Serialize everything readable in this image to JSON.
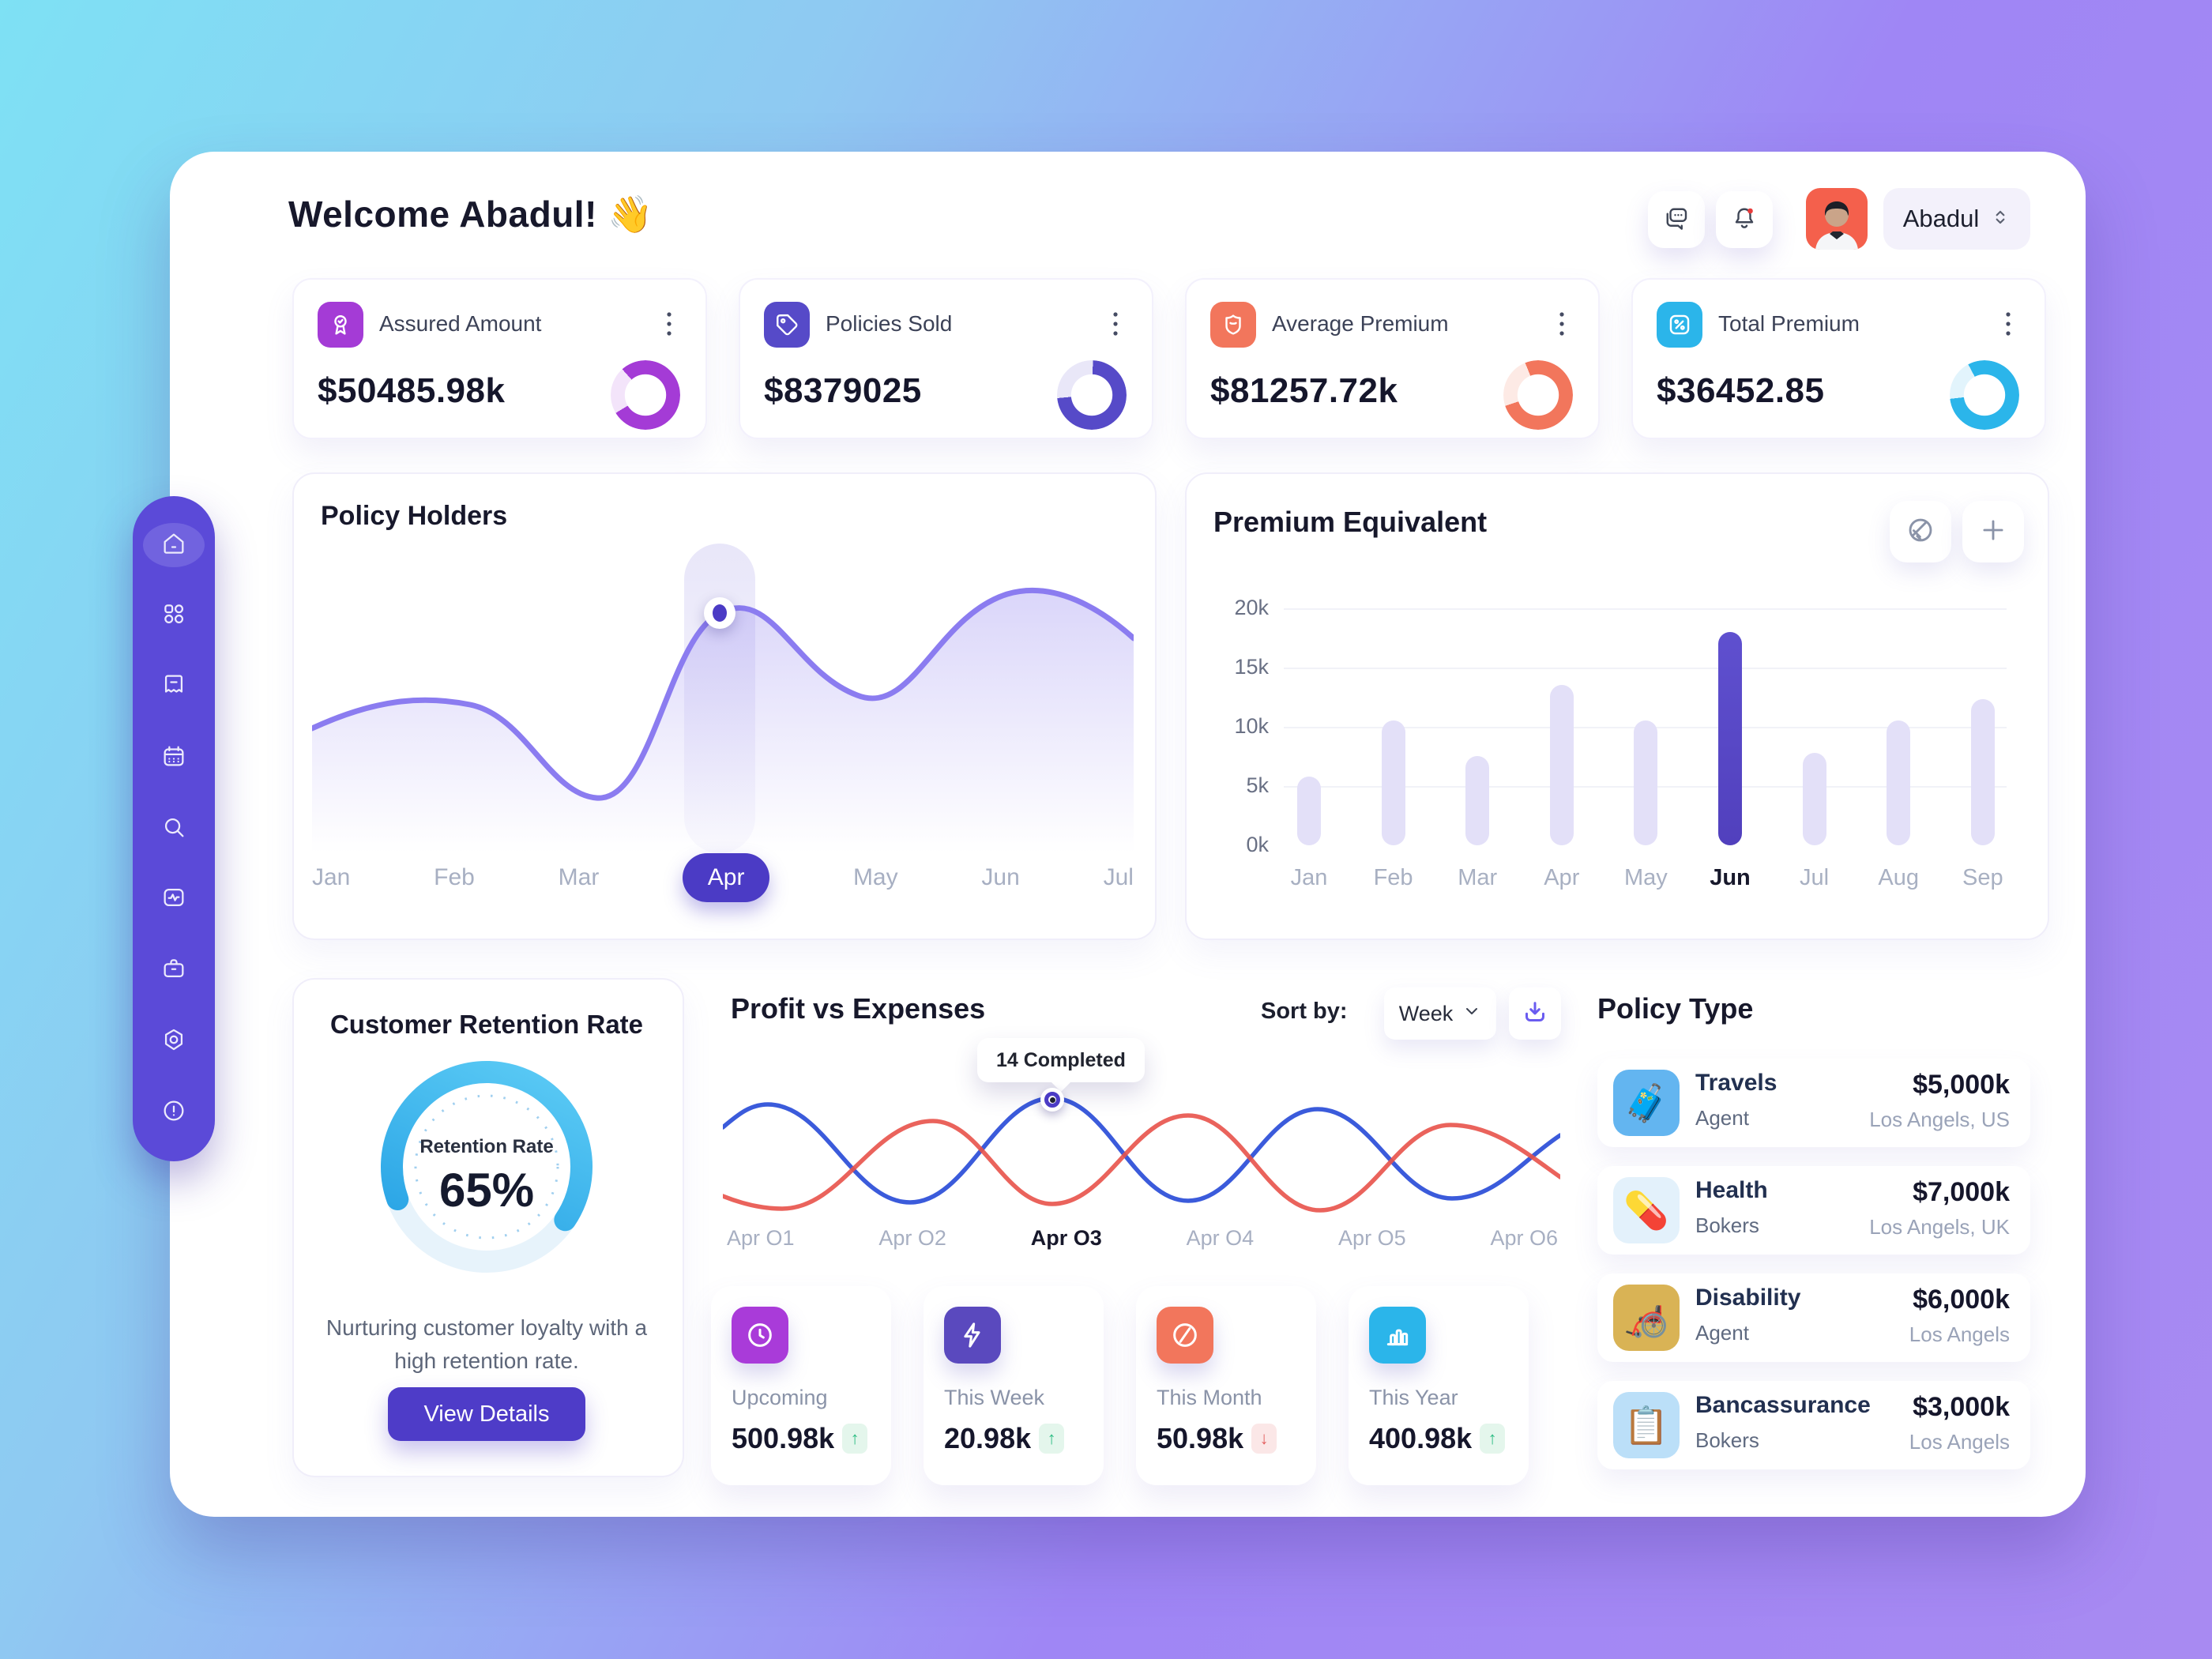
{
  "colors": {
    "accent": "#4b3bc5",
    "sidebar": "#5b4ad8",
    "purple": "#a43bd6",
    "indigo": "#564ac8",
    "coral": "#f2765c",
    "blue": "#2bb5ea",
    "profit_blue": "#3b5bdb",
    "expense_red": "#e8524a",
    "gauge_blue": "#2fa9e9"
  },
  "header": {
    "welcome": "Welcome Abadul!",
    "wave_emoji": "👋",
    "user_name": "Abadul"
  },
  "sidebar": {
    "active": "home",
    "items": [
      "home",
      "grid",
      "wallet",
      "calendar",
      "search",
      "activity",
      "briefcase",
      "settings",
      "alert"
    ]
  },
  "stats": {
    "cards": [
      {
        "title": "Assured Amount",
        "value": "$50485.98k",
        "icon": "award"
      },
      {
        "title": "Policies Sold",
        "value": "$8379025",
        "icon": "tag"
      },
      {
        "title": "Average Premium",
        "value": "$81257.72k",
        "icon": "shield"
      },
      {
        "title": "Total Premium",
        "value": "$36452.85",
        "icon": "percent"
      }
    ]
  },
  "policy_holders": {
    "title": "Policy Holders"
  },
  "premium_equivalent": {
    "title": "Premium Equivalent"
  },
  "retention": {
    "title": "Customer Retention Rate",
    "gauge_label": "Retention Rate",
    "gauge_value": "65%",
    "description": "Nurturing customer loyalty with a high retention rate.",
    "button_label": "View Details"
  },
  "profit_expenses": {
    "title": "Profit vs Expenses",
    "sort_label": "Sort by:",
    "sort_value": "Week",
    "tooltip": "14 Completed",
    "cards": [
      {
        "label": "Upcoming",
        "value": "500.98k",
        "trend": "up",
        "arrow": "↑",
        "icon": "clock"
      },
      {
        "label": "This Week",
        "value": "20.98k",
        "trend": "up",
        "arrow": "↑",
        "icon": "bolt"
      },
      {
        "label": "This Month",
        "value": "50.98k",
        "trend": "down",
        "arrow": "↓",
        "icon": "no-entry"
      },
      {
        "label": "This Year",
        "value": "400.98k",
        "trend": "up",
        "arrow": "↑",
        "icon": "bar-chart"
      }
    ]
  },
  "policy_type": {
    "title": "Policy Type",
    "items": [
      {
        "name": "Travels",
        "role": "Agent",
        "value": "$5,000k",
        "location": "Los Angels, US",
        "emoji": "🧳"
      },
      {
        "name": "Health",
        "role": "Bokers",
        "value": "$7,000k",
        "location": "Los Angels, UK",
        "emoji": "💊"
      },
      {
        "name": "Disability",
        "role": "Agent",
        "value": "$6,000k",
        "location": "Los Angels",
        "emoji": "🦽"
      },
      {
        "name": "Bancassurance",
        "role": "Bokers",
        "value": "$3,000k",
        "location": "Los Angels",
        "emoji": "📋"
      }
    ]
  },
  "chart_data": [
    {
      "type": "area",
      "title": "Policy Holders",
      "categories": [
        "Jan",
        "Feb",
        "Mar",
        "Apr",
        "May",
        "Jun",
        "Jul"
      ],
      "selected": "Apr",
      "values_relative": [
        55,
        62,
        38,
        88,
        65,
        90,
        78
      ],
      "note": "no numeric axis shown; values estimated 0-100"
    },
    {
      "type": "bar",
      "title": "Premium Equivalent",
      "categories": [
        "Jan",
        "Feb",
        "Mar",
        "Apr",
        "May",
        "Jun",
        "Jul",
        "Aug",
        "Sep"
      ],
      "values": [
        5.8,
        10.5,
        7.5,
        13.5,
        10.5,
        18,
        7.8,
        10.5,
        12.3
      ],
      "unit": "k",
      "ylim": [
        0,
        20
      ],
      "yticks": [
        "0k",
        "5k",
        "10k",
        "15k",
        "20k"
      ],
      "highlight": "Jun",
      "grid": true
    },
    {
      "type": "line",
      "title": "Profit vs Expenses",
      "categories": [
        "Apr O1",
        "Apr O2",
        "Apr O3",
        "Apr O4",
        "Apr O5",
        "Apr O6"
      ],
      "selected": "Apr O3",
      "series": [
        {
          "name": "profit",
          "color": "#3b5bdb"
        },
        {
          "name": "expenses",
          "color": "#e8524a"
        }
      ],
      "annotation": {
        "text": "14 Completed",
        "x": "Apr O3"
      }
    },
    {
      "type": "gauge",
      "title": "Customer Retention Rate",
      "label": "Retention Rate",
      "value": 65,
      "unit": "%",
      "ylim": [
        0,
        100
      ]
    }
  ]
}
